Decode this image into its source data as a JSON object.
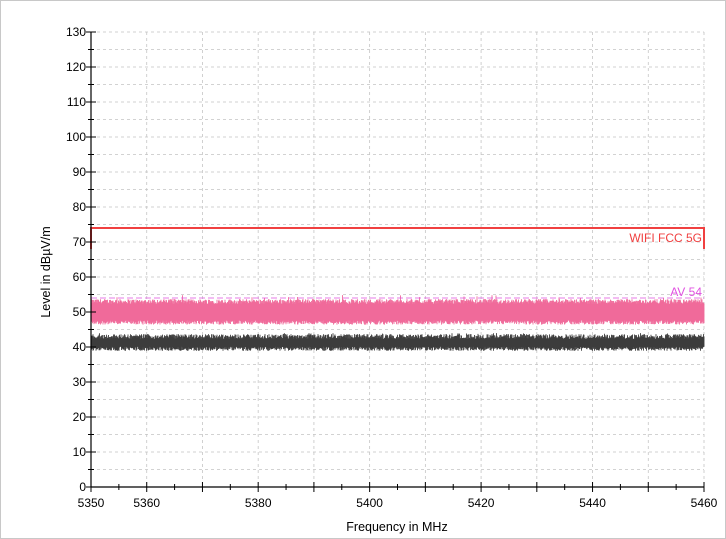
{
  "chart_data": {
    "type": "line",
    "xlabel": "Frequency in MHz",
    "ylabel": "Level in dBµV/m",
    "xlim": [
      5350,
      5460
    ],
    "ylim": [
      0,
      130
    ],
    "x_ticks": [
      5350,
      5360,
      5380,
      5400,
      5420,
      5440,
      5460
    ],
    "y_ticks": [
      0,
      10,
      20,
      30,
      40,
      50,
      60,
      70,
      80,
      90,
      100,
      110,
      120,
      130
    ],
    "grid": true,
    "limit_lines": [
      {
        "name": "WIFI FCC 5G",
        "value": 74,
        "color": "#f04040"
      },
      {
        "name": "AV 54",
        "value": 54,
        "color": "#e050e0"
      }
    ],
    "series": [
      {
        "type": "band",
        "x_range": [
          5350,
          5460
        ],
        "level_min": 47,
        "level_max": 53,
        "peak_max": 55,
        "color": "#f06a9a"
      },
      {
        "type": "band",
        "x_range": [
          5350,
          5460
        ],
        "level_min": 39.5,
        "level_max": 43,
        "peak_max": 44,
        "color": "#3c3c3c"
      }
    ]
  }
}
